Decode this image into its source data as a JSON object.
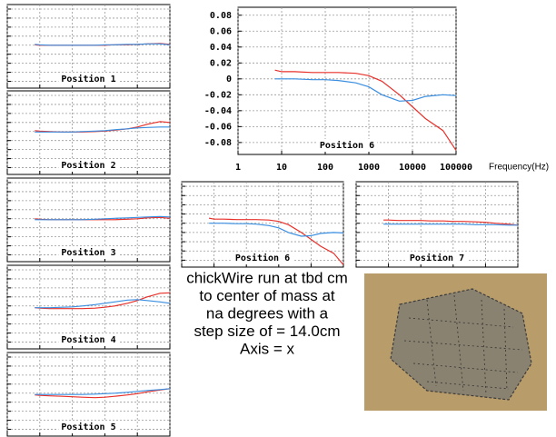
{
  "chart_data": [
    {
      "type": "line",
      "title": "Position 1",
      "log_x": true,
      "grid": true,
      "tick_labels": false,
      "x": [
        7,
        10,
        20,
        50,
        100,
        200,
        500,
        1000,
        2000,
        5000,
        10000,
        20000,
        50000,
        100000
      ],
      "series": [
        {
          "name": "red",
          "color": "#e8302a",
          "values": [
            0.001,
            0,
            0,
            0,
            0,
            0,
            0,
            0,
            0.001,
            0.001,
            0.002,
            0.003,
            0.004,
            0.002
          ]
        },
        {
          "name": "blue",
          "color": "#3a8ee0",
          "values": [
            0.002,
            0.001,
            0,
            0,
            0,
            0,
            0,
            0.001,
            0.001,
            0.002,
            0.002,
            0.003,
            0.003,
            0.001
          ]
        }
      ],
      "xlim": [
        1,
        100000
      ],
      "ylim": [
        -0.095,
        0.09
      ],
      "xticks": [
        1,
        10,
        100,
        1000,
        10000,
        100000
      ],
      "yticks": [
        -0.08,
        -0.06,
        -0.04,
        -0.02,
        0,
        0.02,
        0.04,
        0.06,
        0.08
      ]
    },
    {
      "type": "line",
      "title": "Position 2",
      "log_x": true,
      "grid": true,
      "tick_labels": false,
      "x": [
        7,
        10,
        20,
        50,
        100,
        200,
        500,
        1000,
        2000,
        5000,
        10000,
        20000,
        50000,
        100000
      ],
      "series": [
        {
          "name": "red",
          "color": "#e8302a",
          "values": [
            0.002,
            0.001,
            0,
            -0.001,
            -0.001,
            -0.001,
            0,
            0.001,
            0.003,
            0.006,
            0.01,
            0.016,
            0.022,
            0.02
          ]
        },
        {
          "name": "blue",
          "color": "#3a8ee0",
          "values": [
            -0.001,
            -0.001,
            -0.001,
            -0.001,
            -0.001,
            0,
            0.001,
            0.002,
            0.004,
            0.006,
            0.008,
            0.009,
            0.01,
            0.01
          ]
        }
      ],
      "xlim": [
        1,
        100000
      ],
      "ylim": [
        -0.095,
        0.09
      ],
      "xticks": [
        1,
        10,
        100,
        1000,
        10000,
        100000
      ],
      "yticks": [
        -0.08,
        -0.06,
        -0.04,
        -0.02,
        0,
        0.02,
        0.04,
        0.06,
        0.08
      ]
    },
    {
      "type": "line",
      "title": "Position 3",
      "log_x": true,
      "grid": true,
      "tick_labels": false,
      "x": [
        7,
        10,
        20,
        50,
        100,
        200,
        500,
        1000,
        2000,
        5000,
        10000,
        20000,
        50000,
        100000
      ],
      "series": [
        {
          "name": "red",
          "color": "#e8302a",
          "values": [
            0,
            -0.001,
            -0.002,
            -0.002,
            -0.002,
            -0.002,
            -0.002,
            -0.002,
            -0.002,
            -0.001,
            0,
            0.002,
            0.003,
            0.001
          ]
        },
        {
          "name": "blue",
          "color": "#3a8ee0",
          "values": [
            -0.002,
            -0.002,
            -0.002,
            -0.002,
            -0.002,
            -0.002,
            -0.001,
            0,
            0.001,
            0.002,
            0.003,
            0.004,
            0.005,
            0.004
          ]
        }
      ],
      "xlim": [
        1,
        100000
      ],
      "ylim": [
        -0.095,
        0.09
      ],
      "xticks": [
        1,
        10,
        100,
        1000,
        10000,
        100000
      ],
      "yticks": [
        -0.08,
        -0.06,
        -0.04,
        -0.02,
        0,
        0.02,
        0.04,
        0.06,
        0.08
      ]
    },
    {
      "type": "line",
      "title": "Position 4",
      "log_x": true,
      "grid": true,
      "tick_labels": false,
      "x": [
        7,
        10,
        20,
        50,
        100,
        200,
        500,
        1000,
        2000,
        5000,
        10000,
        20000,
        50000,
        100000
      ],
      "series": [
        {
          "name": "red",
          "color": "#e8302a",
          "values": [
            -0.004,
            -0.005,
            -0.006,
            -0.006,
            -0.006,
            -0.006,
            -0.005,
            -0.003,
            0,
            0.006,
            0.012,
            0.02,
            0.028,
            0.029
          ]
        },
        {
          "name": "blue",
          "color": "#3a8ee0",
          "values": [
            -0.004,
            -0.004,
            -0.004,
            -0.003,
            -0.002,
            0,
            0.003,
            0.006,
            0.009,
            0.013,
            0.014,
            0.012,
            0.009,
            0.006
          ]
        }
      ],
      "xlim": [
        1,
        100000
      ],
      "ylim": [
        -0.095,
        0.09
      ],
      "xticks": [
        1,
        10,
        100,
        1000,
        10000,
        100000
      ],
      "yticks": [
        -0.08,
        -0.06,
        -0.04,
        -0.02,
        0,
        0.02,
        0.04,
        0.06,
        0.08
      ]
    },
    {
      "type": "line",
      "title": "Position 5",
      "log_x": true,
      "grid": true,
      "tick_labels": false,
      "x": [
        7,
        10,
        20,
        50,
        100,
        200,
        500,
        1000,
        2000,
        5000,
        10000,
        20000,
        50000,
        100000
      ],
      "series": [
        {
          "name": "red",
          "color": "#e8302a",
          "values": [
            -0.004,
            -0.005,
            -0.006,
            -0.007,
            -0.008,
            -0.009,
            -0.01,
            -0.009,
            -0.007,
            -0.004,
            -0.001,
            0.003,
            0.007,
            0.01
          ]
        },
        {
          "name": "blue",
          "color": "#3a8ee0",
          "values": [
            -0.003,
            -0.003,
            -0.003,
            -0.003,
            -0.003,
            -0.003,
            -0.002,
            -0.001,
            0,
            0.002,
            0.004,
            0.006,
            0.008,
            0.01
          ]
        }
      ],
      "xlim": [
        1,
        100000
      ],
      "ylim": [
        -0.095,
        0.09
      ],
      "xticks": [
        1,
        10,
        100,
        1000,
        10000,
        100000
      ],
      "yticks": [
        -0.08,
        -0.06,
        -0.04,
        -0.02,
        0,
        0.02,
        0.04,
        0.06,
        0.08
      ]
    },
    {
      "type": "line",
      "title": "Position 6",
      "xlabel": "Frequency(Hz)",
      "log_x": true,
      "grid": true,
      "tick_labels": true,
      "x": [
        7,
        10,
        20,
        50,
        100,
        200,
        500,
        1000,
        2000,
        5000,
        10000,
        20000,
        50000,
        100000
      ],
      "series": [
        {
          "name": "red",
          "color": "#e8302a",
          "values": [
            0.011,
            0.009,
            0.009,
            0.008,
            0.008,
            0.008,
            0.007,
            0.004,
            -0.003,
            -0.02,
            -0.035,
            -0.05,
            -0.065,
            -0.09
          ]
        },
        {
          "name": "blue",
          "color": "#3a8ee0",
          "values": [
            0,
            0,
            0,
            -0.001,
            -0.001,
            -0.002,
            -0.005,
            -0.01,
            -0.02,
            -0.028,
            -0.027,
            -0.022,
            -0.02,
            -0.021
          ]
        }
      ],
      "xlim": [
        1,
        100000
      ],
      "ylim": [
        -0.095,
        0.09
      ],
      "xticks": [
        1,
        10,
        100,
        1000,
        10000,
        100000
      ],
      "yticks": [
        -0.08,
        -0.06,
        -0.04,
        -0.02,
        0,
        0.02,
        0.04,
        0.06,
        0.08
      ]
    },
    {
      "type": "line",
      "title": "Position 6",
      "log_x": true,
      "grid": true,
      "tick_labels": false,
      "x": [
        7,
        10,
        20,
        50,
        100,
        200,
        500,
        1000,
        2000,
        5000,
        10000,
        20000,
        50000,
        100000
      ],
      "series": [
        {
          "name": "red",
          "color": "#e8302a",
          "values": [
            0.011,
            0.009,
            0.009,
            0.008,
            0.008,
            0.008,
            0.007,
            0.004,
            -0.003,
            -0.02,
            -0.035,
            -0.05,
            -0.065,
            -0.09
          ]
        },
        {
          "name": "blue",
          "color": "#3a8ee0",
          "values": [
            0,
            0,
            0,
            -0.001,
            -0.001,
            -0.002,
            -0.005,
            -0.01,
            -0.02,
            -0.028,
            -0.027,
            -0.022,
            -0.02,
            -0.021
          ]
        }
      ],
      "xlim": [
        1,
        100000
      ],
      "ylim": [
        -0.095,
        0.09
      ],
      "xticks": [
        1,
        10,
        100,
        1000,
        10000,
        100000
      ],
      "yticks": [
        -0.08,
        -0.06,
        -0.04,
        -0.02,
        0,
        0.02,
        0.04,
        0.06,
        0.08
      ]
    },
    {
      "type": "line",
      "title": "Position 7",
      "log_x": true,
      "grid": true,
      "tick_labels": false,
      "x": [
        7,
        10,
        20,
        50,
        100,
        200,
        500,
        1000,
        2000,
        5000,
        10000,
        20000,
        50000,
        100000
      ],
      "series": [
        {
          "name": "red",
          "color": "#e8302a",
          "values": [
            0.007,
            0.007,
            0.006,
            0.006,
            0.006,
            0.005,
            0.005,
            0.004,
            0.004,
            0.003,
            0.002,
            0,
            -0.002,
            -0.004
          ]
        },
        {
          "name": "blue",
          "color": "#3a8ee0",
          "values": [
            -0.002,
            -0.002,
            -0.002,
            -0.002,
            -0.002,
            -0.002,
            -0.002,
            -0.002,
            -0.002,
            -0.003,
            -0.003,
            -0.003,
            -0.004,
            -0.004
          ]
        }
      ],
      "xlim": [
        1,
        100000
      ],
      "ylim": [
        -0.095,
        0.09
      ],
      "xticks": [
        1,
        10,
        100,
        1000,
        10000,
        100000
      ],
      "yticks": [
        -0.08,
        -0.06,
        -0.04,
        -0.02,
        0,
        0.02,
        0.04,
        0.06,
        0.08
      ]
    }
  ],
  "caption": {
    "lines": [
      "chickWire run at tbd cm",
      "to center of mass at",
      "na degrees with a",
      "step size of = 14.0cm",
      "Axis = x"
    ]
  }
}
